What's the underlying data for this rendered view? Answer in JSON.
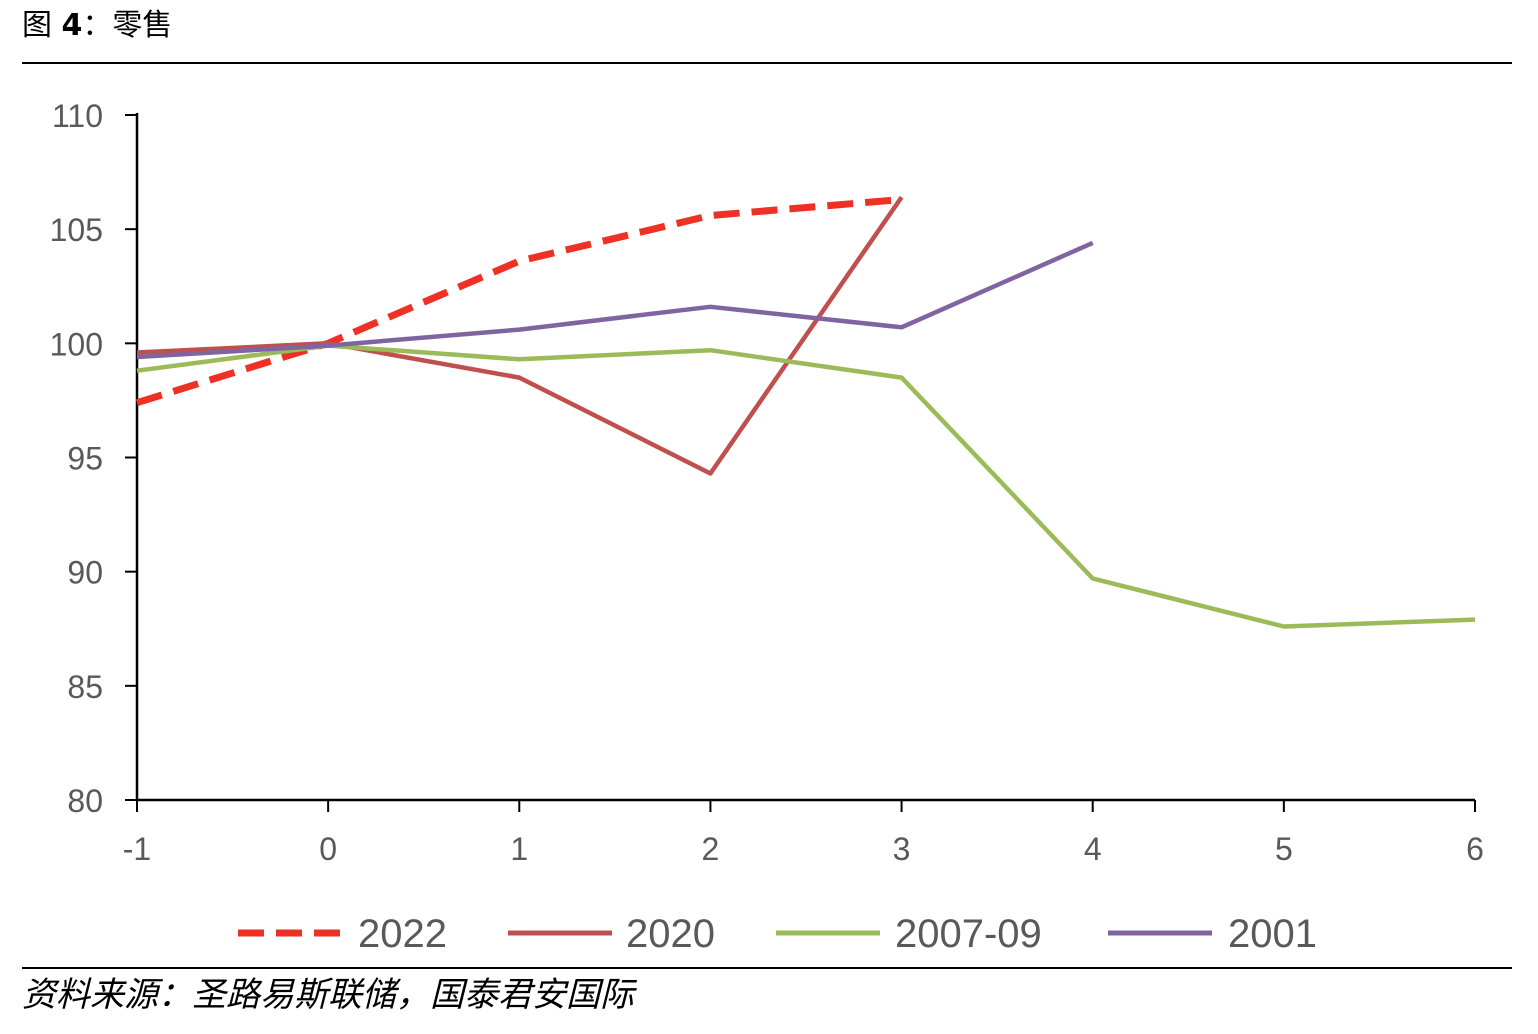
{
  "figure": {
    "label": "图",
    "number": "4",
    "sep": "：",
    "title": "零售"
  },
  "source": "资料来源：圣路易斯联储，国泰君安国际",
  "colors": {
    "2022": "#ee3124",
    "2020": "#c0504d",
    "2007-09": "#9bbb59",
    "2001": "#8064a2",
    "axis": "#000000",
    "text": "#595959"
  },
  "chart_data": {
    "type": "line",
    "title": "",
    "xlabel": "",
    "ylabel": "",
    "x_ticks": [
      -1,
      0,
      1,
      2,
      3,
      4,
      5,
      6
    ],
    "y_ticks": [
      80,
      85,
      90,
      95,
      100,
      105,
      110
    ],
    "xlim": [
      -1,
      6
    ],
    "ylim": [
      80,
      110
    ],
    "grid": false,
    "legend_position": "bottom",
    "series": [
      {
        "name": "2022",
        "style": "dashed",
        "x": [
          -1,
          0,
          1,
          2,
          3
        ],
        "y": [
          97.4,
          100.0,
          103.6,
          105.6,
          106.3
        ]
      },
      {
        "name": "2020",
        "style": "solid",
        "x": [
          -1,
          0,
          1,
          2,
          3
        ],
        "y": [
          99.6,
          100.0,
          98.5,
          94.3,
          106.4
        ]
      },
      {
        "name": "2007-09",
        "style": "solid",
        "x": [
          -1,
          0,
          1,
          2,
          3,
          4,
          5,
          6
        ],
        "y": [
          98.8,
          99.9,
          99.3,
          99.7,
          98.5,
          89.7,
          87.6,
          87.9
        ]
      },
      {
        "name": "2001",
        "style": "solid",
        "x": [
          -1,
          0,
          1,
          2,
          3,
          4
        ],
        "y": [
          99.4,
          99.9,
          100.6,
          101.6,
          100.7,
          104.4
        ]
      }
    ]
  }
}
